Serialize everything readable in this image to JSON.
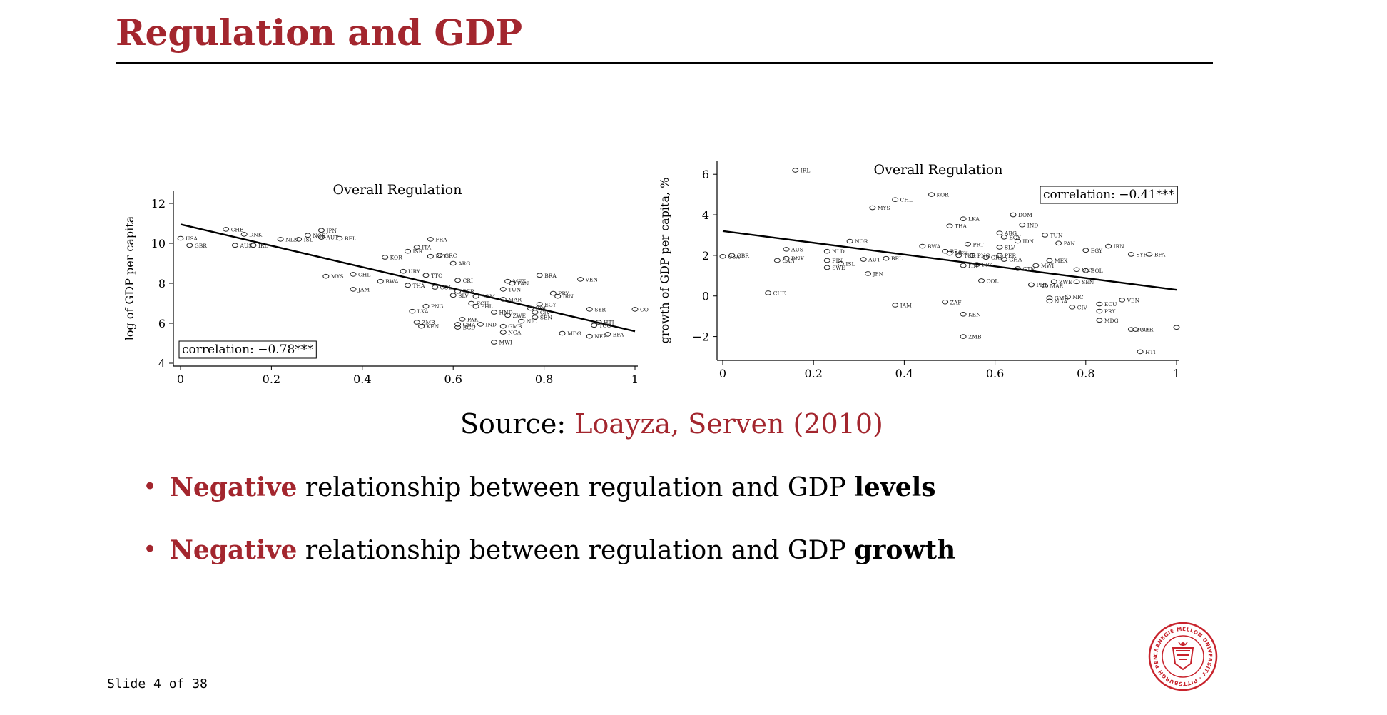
{
  "slide": {
    "title": "Regulation and GDP",
    "source_prefix": "Source:",
    "source_ref": "Loayza, Serven (2010)",
    "bullets": [
      {
        "lead": "Negative",
        "middle": "relationship between regulation and GDP",
        "tail": "levels"
      },
      {
        "lead": "Negative",
        "middle": "relationship between regulation and GDP",
        "tail": "growth"
      }
    ],
    "footer": "Slide 4 of 38",
    "logo": "Carnegie Mellon University seal",
    "logo_text": "CARNEGIE MELLON UNIVERSITY · PITTSBURGH PENNSYLVANIA 1900",
    "colors": {
      "accent": "#a3262e",
      "text": "#000000"
    }
  },
  "chart_data": [
    {
      "type": "scatter",
      "title": "Overall Regulation",
      "xlabel": "",
      "ylabel": "log of GDP per capita",
      "xlim": [
        0,
        1
      ],
      "ylim": [
        4,
        12.5
      ],
      "xticks": [
        0,
        0.2,
        0.4,
        0.6,
        0.8,
        1
      ],
      "xtick_labels": [
        "0",
        "0.2",
        "0.4",
        "0.6",
        "0.8",
        "1"
      ],
      "yticks": [
        4,
        6,
        8,
        10,
        12
      ],
      "ytick_labels": [
        "4",
        "6",
        "8",
        "10",
        "12"
      ],
      "annotation": "correlation: −0.78***",
      "annotation_position": "bottom-left",
      "fit_line": [
        [
          0,
          10.95
        ],
        [
          1,
          5.6
        ]
      ],
      "points": [
        {
          "label": "USA",
          "x": 0.0,
          "y": 10.25
        },
        {
          "label": "GBR",
          "x": 0.02,
          "y": 9.9
        },
        {
          "label": "CHE",
          "x": 0.1,
          "y": 10.7
        },
        {
          "label": "DNK",
          "x": 0.14,
          "y": 10.45
        },
        {
          "label": "AUS",
          "x": 0.12,
          "y": 9.9
        },
        {
          "label": "IRL",
          "x": 0.16,
          "y": 9.9
        },
        {
          "label": "NLD",
          "x": 0.22,
          "y": 10.2
        },
        {
          "label": "ISL",
          "x": 0.26,
          "y": 10.2
        },
        {
          "label": "NOR",
          "x": 0.28,
          "y": 10.4
        },
        {
          "label": "JPN",
          "x": 0.31,
          "y": 10.65
        },
        {
          "label": "AUT",
          "x": 0.31,
          "y": 10.3
        },
        {
          "label": "BEL",
          "x": 0.35,
          "y": 10.25
        },
        {
          "label": "FRA",
          "x": 0.55,
          "y": 10.2
        },
        {
          "label": "ITA",
          "x": 0.52,
          "y": 9.8
        },
        {
          "label": "ISR",
          "x": 0.5,
          "y": 9.6
        },
        {
          "label": "KOR",
          "x": 0.45,
          "y": 9.3
        },
        {
          "label": "PRT",
          "x": 0.55,
          "y": 9.35
        },
        {
          "label": "GRC",
          "x": 0.57,
          "y": 9.4
        },
        {
          "label": "ARG",
          "x": 0.6,
          "y": 9.0
        },
        {
          "label": "URY",
          "x": 0.49,
          "y": 8.6
        },
        {
          "label": "TTO",
          "x": 0.54,
          "y": 8.4
        },
        {
          "label": "MYS",
          "x": 0.32,
          "y": 8.35
        },
        {
          "label": "CHL",
          "x": 0.38,
          "y": 8.45
        },
        {
          "label": "BWA",
          "x": 0.44,
          "y": 8.1
        },
        {
          "label": "THA",
          "x": 0.5,
          "y": 7.9
        },
        {
          "label": "COL",
          "x": 0.56,
          "y": 7.8
        },
        {
          "label": "JAM",
          "x": 0.38,
          "y": 7.7
        },
        {
          "label": "CRI",
          "x": 0.61,
          "y": 8.15
        },
        {
          "label": "MEX",
          "x": 0.72,
          "y": 8.1
        },
        {
          "label": "PAN",
          "x": 0.73,
          "y": 8.0
        },
        {
          "label": "BRA",
          "x": 0.79,
          "y": 8.4
        },
        {
          "label": "VEN",
          "x": 0.88,
          "y": 8.2
        },
        {
          "label": "PER",
          "x": 0.61,
          "y": 7.6
        },
        {
          "label": "SLV",
          "x": 0.6,
          "y": 7.4
        },
        {
          "label": "DOM",
          "x": 0.65,
          "y": 7.35
        },
        {
          "label": "TUN",
          "x": 0.71,
          "y": 7.7
        },
        {
          "label": "MAR",
          "x": 0.71,
          "y": 7.2
        },
        {
          "label": "ECU",
          "x": 0.64,
          "y": 7.0
        },
        {
          "label": "PHL",
          "x": 0.65,
          "y": 6.85
        },
        {
          "label": "EGY",
          "x": 0.79,
          "y": 6.95
        },
        {
          "label": "BOL",
          "x": 0.77,
          "y": 6.75
        },
        {
          "label": "PRY",
          "x": 0.82,
          "y": 7.5
        },
        {
          "label": "IRN",
          "x": 0.83,
          "y": 7.35
        },
        {
          "label": "SYR",
          "x": 0.9,
          "y": 6.7
        },
        {
          "label": "CIV",
          "x": 0.78,
          "y": 6.55
        },
        {
          "label": "HND",
          "x": 0.69,
          "y": 6.55
        },
        {
          "label": "ZWE",
          "x": 0.72,
          "y": 6.4
        },
        {
          "label": "SEN",
          "x": 0.78,
          "y": 6.3
        },
        {
          "label": "NIC",
          "x": 0.75,
          "y": 6.1
        },
        {
          "label": "LKA",
          "x": 0.51,
          "y": 6.6
        },
        {
          "label": "PNG",
          "x": 0.54,
          "y": 6.85
        },
        {
          "label": "PAK",
          "x": 0.62,
          "y": 6.2
        },
        {
          "label": "GHA",
          "x": 0.61,
          "y": 5.95
        },
        {
          "label": "BGD",
          "x": 0.61,
          "y": 5.8
        },
        {
          "label": "IND",
          "x": 0.66,
          "y": 5.95
        },
        {
          "label": "GMB",
          "x": 0.71,
          "y": 5.85
        },
        {
          "label": "NGA",
          "x": 0.71,
          "y": 5.55
        },
        {
          "label": "ZMB",
          "x": 0.52,
          "y": 6.05
        },
        {
          "label": "KEN",
          "x": 0.53,
          "y": 5.85
        },
        {
          "label": "MWI",
          "x": 0.69,
          "y": 5.05
        },
        {
          "label": "MDG",
          "x": 0.84,
          "y": 5.5
        },
        {
          "label": "NER",
          "x": 0.9,
          "y": 5.35
        },
        {
          "label": "TGO",
          "x": 0.91,
          "y": 5.9
        },
        {
          "label": "HTI",
          "x": 0.92,
          "y": 6.05
        },
        {
          "label": "BFA",
          "x": 0.94,
          "y": 5.45
        },
        {
          "label": "COG",
          "x": 1.0,
          "y": 6.7
        }
      ]
    },
    {
      "type": "scatter",
      "title": "Overall Regulation",
      "xlabel": "",
      "ylabel": "growth of GDP per capita, %",
      "xlim": [
        0,
        1
      ],
      "ylim": [
        -3,
        6.5
      ],
      "xticks": [
        0,
        0.2,
        0.4,
        0.6,
        0.8,
        1
      ],
      "xtick_labels": [
        "0",
        "0.2",
        "0.4",
        "0.6",
        "0.8",
        "1"
      ],
      "yticks": [
        -2,
        0,
        2,
        4,
        6
      ],
      "ytick_labels": [
        "−2",
        "0",
        "2",
        "4",
        "6"
      ],
      "annotation": "correlation: −0.41***",
      "annotation_position": "top-right",
      "fit_line": [
        [
          0,
          3.2
        ],
        [
          1,
          0.3
        ]
      ],
      "points": [
        {
          "label": "IRL",
          "x": 0.16,
          "y": 6.2
        },
        {
          "label": "KOR",
          "x": 0.46,
          "y": 5.0
        },
        {
          "label": "CHL",
          "x": 0.38,
          "y": 4.75
        },
        {
          "label": "MYS",
          "x": 0.33,
          "y": 4.35
        },
        {
          "label": "LKA",
          "x": 0.53,
          "y": 3.8
        },
        {
          "label": "THA",
          "x": 0.5,
          "y": 3.45
        },
        {
          "label": "DOM",
          "x": 0.64,
          "y": 4.0
        },
        {
          "label": "IND",
          "x": 0.66,
          "y": 3.5
        },
        {
          "label": "ARG",
          "x": 0.61,
          "y": 3.1
        },
        {
          "label": "EGY",
          "x": 0.62,
          "y": 2.9
        },
        {
          "label": "IDN",
          "x": 0.65,
          "y": 2.7
        },
        {
          "label": "TUN",
          "x": 0.71,
          "y": 3.0
        },
        {
          "label": "PAN",
          "x": 0.74,
          "y": 2.6
        },
        {
          "label": "IRN",
          "x": 0.85,
          "y": 2.45
        },
        {
          "label": "EGY",
          "x": 0.8,
          "y": 2.25
        },
        {
          "label": "SYR",
          "x": 0.9,
          "y": 2.05
        },
        {
          "label": "BFA",
          "x": 0.94,
          "y": 2.05
        },
        {
          "label": "NOR",
          "x": 0.28,
          "y": 2.7
        },
        {
          "label": "AUS",
          "x": 0.14,
          "y": 2.3
        },
        {
          "label": "NLD",
          "x": 0.23,
          "y": 2.2
        },
        {
          "label": "USA",
          "x": 0.0,
          "y": 1.95
        },
        {
          "label": "GBR",
          "x": 0.02,
          "y": 2.0
        },
        {
          "label": "DNK",
          "x": 0.14,
          "y": 1.85
        },
        {
          "label": "CAN",
          "x": 0.12,
          "y": 1.75
        },
        {
          "label": "FIN",
          "x": 0.23,
          "y": 1.75
        },
        {
          "label": "ISL",
          "x": 0.26,
          "y": 1.6
        },
        {
          "label": "SWE",
          "x": 0.23,
          "y": 1.4
        },
        {
          "label": "AUT",
          "x": 0.31,
          "y": 1.8
        },
        {
          "label": "BEL",
          "x": 0.36,
          "y": 1.85
        },
        {
          "label": "JPN",
          "x": 0.32,
          "y": 1.1
        },
        {
          "label": "CHE",
          "x": 0.1,
          "y": 0.15
        },
        {
          "label": "BWA",
          "x": 0.44,
          "y": 2.45
        },
        {
          "label": "BRA",
          "x": 0.49,
          "y": 2.2
        },
        {
          "label": "MEX",
          "x": 0.5,
          "y": 2.1
        },
        {
          "label": "TUR",
          "x": 0.52,
          "y": 2.0
        },
        {
          "label": "PRT",
          "x": 0.54,
          "y": 2.55
        },
        {
          "label": "PNG",
          "x": 0.55,
          "y": 2.0
        },
        {
          "label": "SLV",
          "x": 0.61,
          "y": 2.4
        },
        {
          "label": "PER",
          "x": 0.61,
          "y": 2.0
        },
        {
          "label": "GRC",
          "x": 0.58,
          "y": 1.9
        },
        {
          "label": "GHA",
          "x": 0.62,
          "y": 1.8
        },
        {
          "label": "ITA",
          "x": 0.53,
          "y": 1.5
        },
        {
          "label": "FRA",
          "x": 0.56,
          "y": 1.55
        },
        {
          "label": "MEX",
          "x": 0.72,
          "y": 1.75
        },
        {
          "label": "MWI",
          "x": 0.69,
          "y": 1.5
        },
        {
          "label": "GTM",
          "x": 0.65,
          "y": 1.35
        },
        {
          "label": "COL",
          "x": 0.57,
          "y": 0.75
        },
        {
          "label": "URY",
          "x": 0.78,
          "y": 1.3
        },
        {
          "label": "BOL",
          "x": 0.8,
          "y": 1.25
        },
        {
          "label": "ZWE",
          "x": 0.73,
          "y": 0.7
        },
        {
          "label": "SEN",
          "x": 0.78,
          "y": 0.7
        },
        {
          "label": "MAR",
          "x": 0.71,
          "y": 0.5
        },
        {
          "label": "PHL",
          "x": 0.68,
          "y": 0.55
        },
        {
          "label": "NIC",
          "x": 0.76,
          "y": -0.05
        },
        {
          "label": "GMB",
          "x": 0.72,
          "y": -0.1
        },
        {
          "label": "NGA",
          "x": 0.72,
          "y": -0.25
        },
        {
          "label": "VEN",
          "x": 0.88,
          "y": -0.2
        },
        {
          "label": "ECU",
          "x": 0.83,
          "y": -0.4
        },
        {
          "label": "CIV",
          "x": 0.77,
          "y": -0.55
        },
        {
          "label": "PRY",
          "x": 0.83,
          "y": -0.75
        },
        {
          "label": "MDG",
          "x": 0.83,
          "y": -1.2
        },
        {
          "label": "TGO",
          "x": 0.9,
          "y": -1.65
        },
        {
          "label": "NER",
          "x": 0.91,
          "y": -1.65
        },
        {
          "label": "COG",
          "x": 1.0,
          "y": -1.55
        },
        {
          "label": "HTI",
          "x": 0.92,
          "y": -2.75
        },
        {
          "label": "JAM",
          "x": 0.38,
          "y": -0.45
        },
        {
          "label": "ZAF",
          "x": 0.49,
          "y": -0.3
        },
        {
          "label": "KEN",
          "x": 0.53,
          "y": -0.9
        },
        {
          "label": "ZMB",
          "x": 0.53,
          "y": -2.0
        }
      ]
    }
  ]
}
